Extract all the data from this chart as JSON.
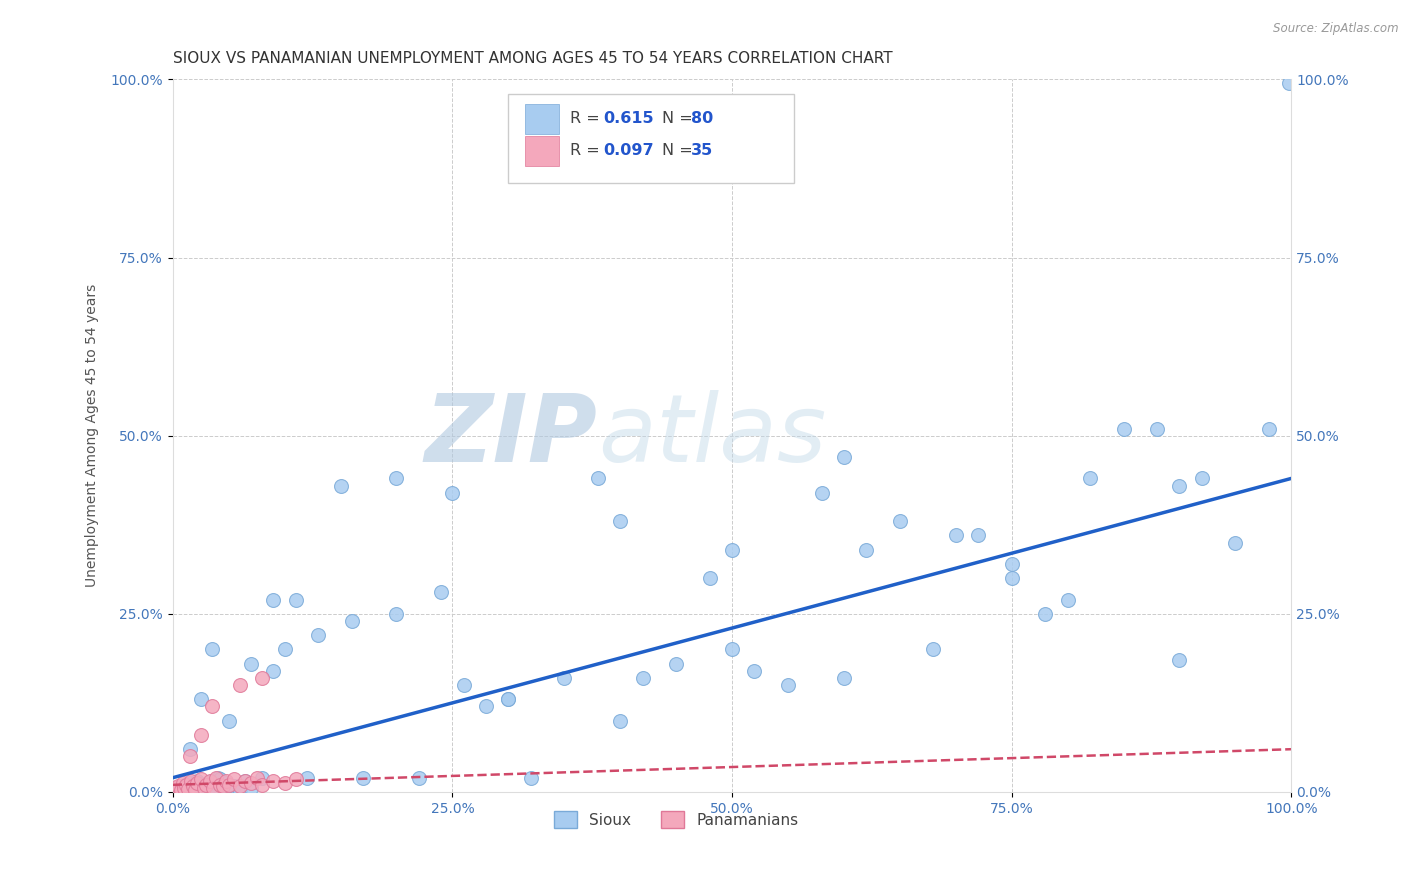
{
  "title": "SIOUX VS PANAMANIAN UNEMPLOYMENT AMONG AGES 45 TO 54 YEARS CORRELATION CHART",
  "source": "Source: ZipAtlas.com",
  "ylabel": "Unemployment Among Ages 45 to 54 years",
  "xlim": [
    0,
    1.0
  ],
  "ylim": [
    0,
    1.0
  ],
  "xticks": [
    0.0,
    0.25,
    0.5,
    0.75,
    1.0
  ],
  "yticks": [
    0.0,
    0.25,
    0.5,
    0.75,
    1.0
  ],
  "xticklabels": [
    "0.0%",
    "25.0%",
    "50.0%",
    "75.0%",
    "100.0%"
  ],
  "yticklabels": [
    "0.0%",
    "25.0%",
    "50.0%",
    "75.0%",
    "100.0%"
  ],
  "sioux_color": "#A8CCF0",
  "panamanian_color": "#F4A8BC",
  "sioux_edge": "#7AAAD8",
  "panamanian_edge": "#E07898",
  "sioux_line_color": "#2060C8",
  "panamanian_line_color": "#D04868",
  "watermark_zip": "ZIP",
  "watermark_atlas": "atlas",
  "watermark_color": "#C8D8E8",
  "background_color": "#FFFFFF",
  "grid_color": "#CCCCCC",
  "sioux_x": [
    0.005,
    0.008,
    0.01,
    0.012,
    0.015,
    0.018,
    0.02,
    0.022,
    0.025,
    0.028,
    0.03,
    0.032,
    0.035,
    0.038,
    0.04,
    0.042,
    0.045,
    0.048,
    0.05,
    0.055,
    0.06,
    0.065,
    0.07,
    0.08,
    0.09,
    0.1,
    0.11,
    0.13,
    0.15,
    0.17,
    0.2,
    0.22,
    0.24,
    0.26,
    0.28,
    0.3,
    0.32,
    0.35,
    0.38,
    0.4,
    0.42,
    0.45,
    0.48,
    0.5,
    0.52,
    0.55,
    0.58,
    0.6,
    0.62,
    0.65,
    0.68,
    0.7,
    0.72,
    0.75,
    0.78,
    0.8,
    0.82,
    0.85,
    0.88,
    0.9,
    0.92,
    0.95,
    0.98,
    0.998,
    0.015,
    0.025,
    0.035,
    0.05,
    0.07,
    0.09,
    0.12,
    0.16,
    0.2,
    0.25,
    0.3,
    0.4,
    0.5,
    0.6,
    0.75,
    0.9
  ],
  "sioux_y": [
    0.005,
    0.008,
    0.01,
    0.003,
    0.012,
    0.006,
    0.004,
    0.015,
    0.008,
    0.002,
    0.01,
    0.007,
    0.015,
    0.003,
    0.02,
    0.018,
    0.005,
    0.012,
    0.003,
    0.008,
    0.002,
    0.016,
    0.005,
    0.02,
    0.17,
    0.2,
    0.27,
    0.22,
    0.43,
    0.02,
    0.25,
    0.02,
    0.28,
    0.15,
    0.12,
    0.13,
    0.02,
    0.16,
    0.44,
    0.38,
    0.16,
    0.18,
    0.3,
    0.34,
    0.17,
    0.15,
    0.42,
    0.16,
    0.34,
    0.38,
    0.2,
    0.36,
    0.36,
    0.32,
    0.25,
    0.27,
    0.44,
    0.51,
    0.51,
    0.185,
    0.44,
    0.35,
    0.51,
    0.995,
    0.06,
    0.13,
    0.2,
    0.1,
    0.18,
    0.27,
    0.02,
    0.24,
    0.44,
    0.42,
    0.13,
    0.1,
    0.2,
    0.47,
    0.3,
    0.43
  ],
  "panamanian_x": [
    0.003,
    0.005,
    0.007,
    0.009,
    0.01,
    0.012,
    0.014,
    0.016,
    0.018,
    0.02,
    0.022,
    0.025,
    0.028,
    0.03,
    0.033,
    0.036,
    0.039,
    0.042,
    0.045,
    0.048,
    0.05,
    0.055,
    0.06,
    0.065,
    0.07,
    0.075,
    0.08,
    0.09,
    0.1,
    0.11,
    0.015,
    0.025,
    0.035,
    0.06,
    0.08
  ],
  "panamanian_y": [
    0.005,
    0.008,
    0.003,
    0.012,
    0.006,
    0.01,
    0.004,
    0.015,
    0.008,
    0.003,
    0.012,
    0.018,
    0.006,
    0.01,
    0.015,
    0.005,
    0.02,
    0.01,
    0.008,
    0.015,
    0.01,
    0.018,
    0.008,
    0.015,
    0.012,
    0.02,
    0.01,
    0.015,
    0.012,
    0.018,
    0.05,
    0.08,
    0.12,
    0.15,
    0.16
  ],
  "sioux_intercept": 0.02,
  "sioux_slope": 0.42,
  "pana_intercept": 0.01,
  "pana_slope": 0.05,
  "title_fontsize": 11,
  "axis_fontsize": 10,
  "tick_fontsize": 10,
  "marker_size": 100
}
